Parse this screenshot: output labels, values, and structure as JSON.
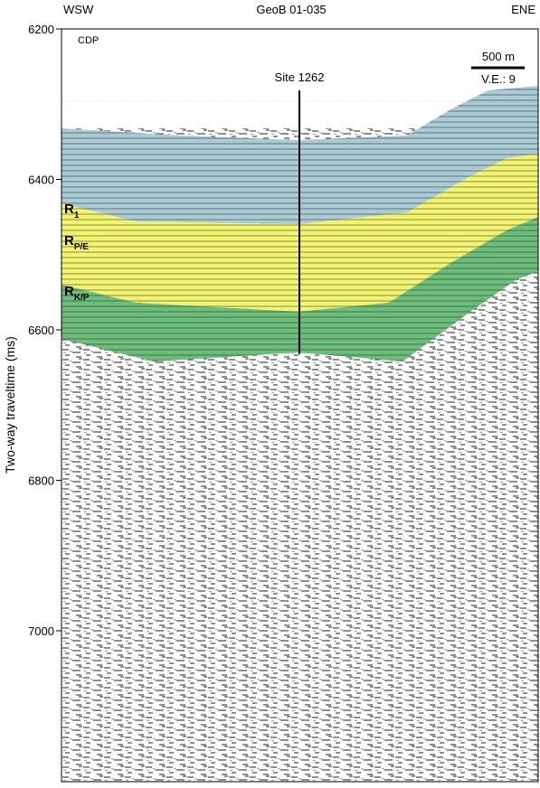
{
  "header": {
    "left": "WSW",
    "title": "GeoB 01-035",
    "right": "ENE"
  },
  "axis": {
    "label": "Two-way traveltime (ms)",
    "ticks": [
      "6200",
      "6400",
      "6600",
      "6800",
      "7000"
    ]
  },
  "profile": {
    "cdp_label": "CDP",
    "site": "Site 1262",
    "scale": "500 m",
    "ve": "V.E.: 9",
    "reflectors": [
      {
        "label": "R",
        "sub": "1"
      },
      {
        "label": "R",
        "sub": "P/E"
      },
      {
        "label": "R",
        "sub": "K/P"
      }
    ]
  }
}
